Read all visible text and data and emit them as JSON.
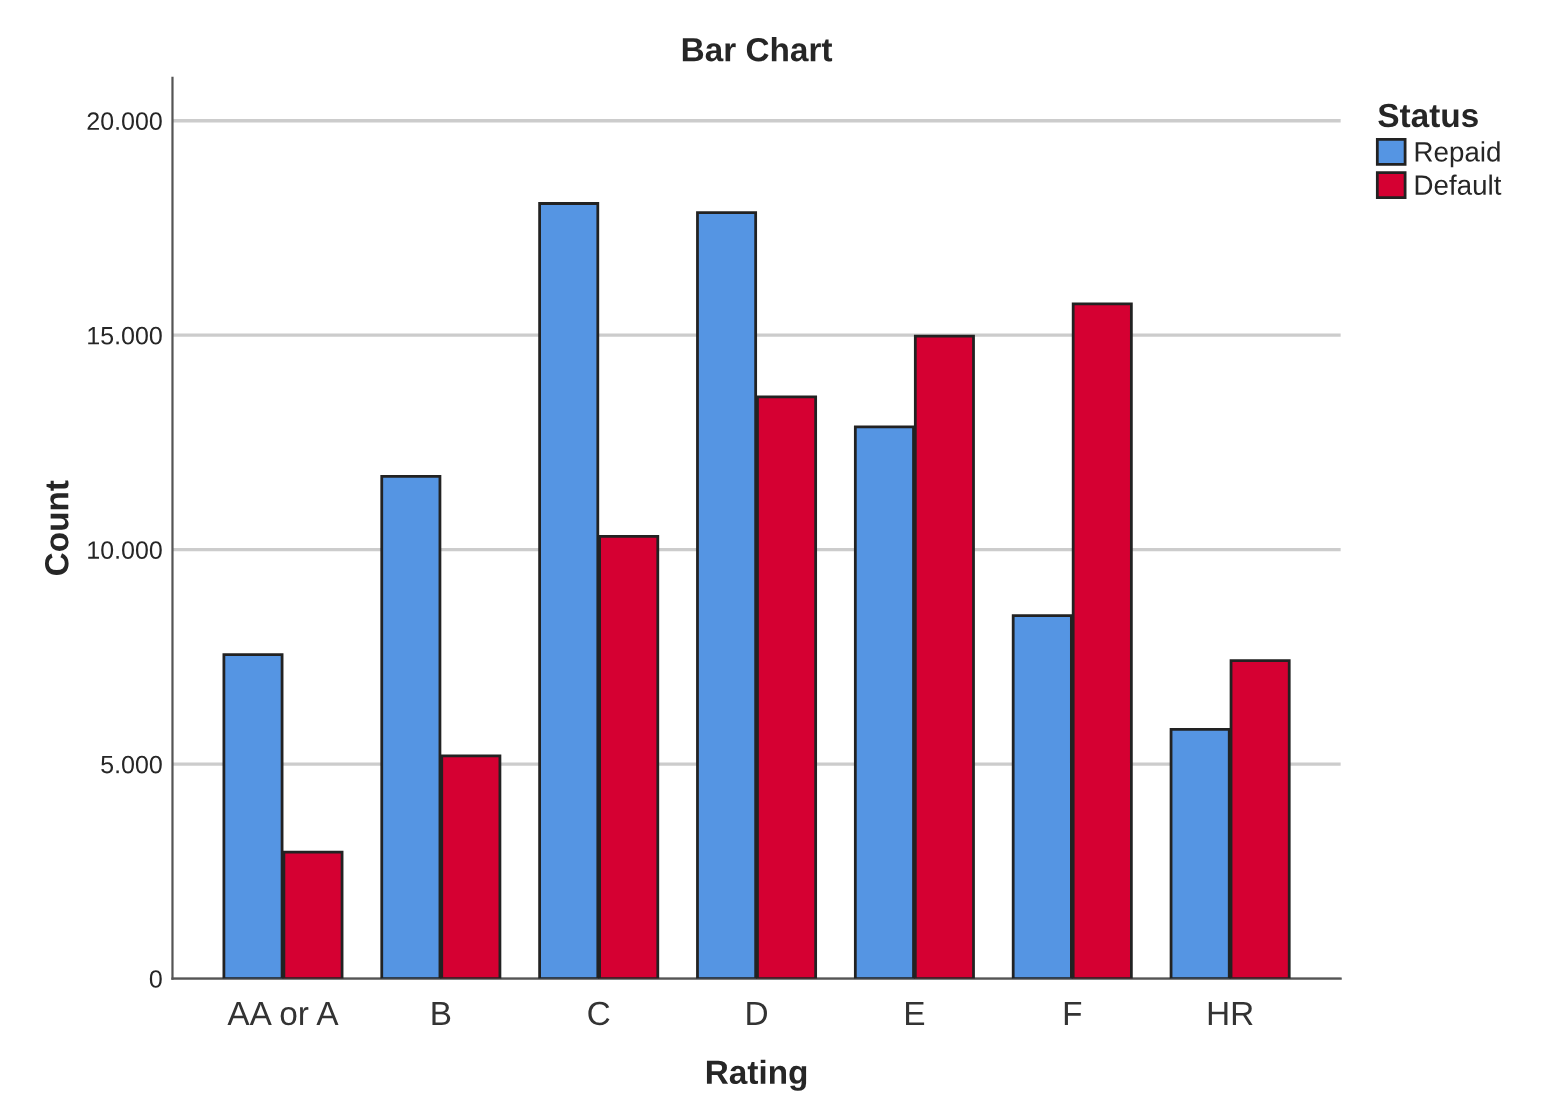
{
  "chart_data": {
    "type": "bar",
    "title": "Bar Chart",
    "xlabel": "Rating",
    "ylabel": "Count",
    "legend_title": "Status",
    "categories": [
      "AA or A",
      "B",
      "C",
      "D",
      "E",
      "F",
      "HR"
    ],
    "series": [
      {
        "name": "Repaid",
        "color": "#5595e3",
        "values": [
          7550,
          11710,
          18070,
          17860,
          12860,
          8460,
          5810
        ]
      },
      {
        "name": "Default",
        "color": "#d50032",
        "values": [
          2950,
          5190,
          10310,
          13560,
          14980,
          15730,
          7410
        ]
      }
    ],
    "ylim": [
      0,
      21000
    ],
    "yticks": [
      {
        "value": 0,
        "label": "0"
      },
      {
        "value": 5000,
        "label": "5.000"
      },
      {
        "value": 10000,
        "label": "10.000"
      },
      {
        "value": 15000,
        "label": "15.000"
      },
      {
        "value": 20000,
        "label": "20.000"
      }
    ],
    "grid": "y",
    "legend": "top right"
  }
}
